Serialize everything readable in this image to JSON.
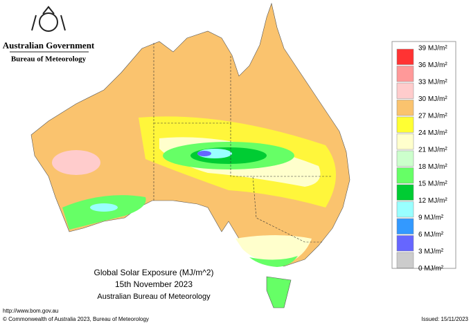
{
  "header": {
    "agency": "Australian Government",
    "bureau": "Bureau of Meteorology"
  },
  "map": {
    "title": "Global Solar Exposure (MJ/m^2)",
    "date": "15th November 2023",
    "source": "Australian Bureau of Meteorology"
  },
  "legend": {
    "labels": [
      {
        "value": 39,
        "label": "39 MJ/m²"
      },
      {
        "value": 36,
        "label": "36 MJ/m²"
      },
      {
        "value": 33,
        "label": "33 MJ/m²"
      },
      {
        "value": 30,
        "label": "30 MJ/m²"
      },
      {
        "value": 27,
        "label": "27 MJ/m²"
      },
      {
        "value": 24,
        "label": "24 MJ/m²"
      },
      {
        "value": 21,
        "label": "21 MJ/m²"
      },
      {
        "value": 18,
        "label": "18 MJ/m²"
      },
      {
        "value": 15,
        "label": "15 MJ/m²"
      },
      {
        "value": 12,
        "label": "12 MJ/m²"
      },
      {
        "value": 9,
        "label": "9 MJ/m²"
      },
      {
        "value": 6,
        "label": "6 MJ/m²"
      },
      {
        "value": 3,
        "label": "3 MJ/m²"
      },
      {
        "value": 0,
        "label": "0 MJ/m²"
      }
    ],
    "colors": [
      "#ff3333",
      "#ff9999",
      "#ffcccc",
      "#fac36e",
      "#ffff33",
      "#ffffcc",
      "#ccffcc",
      "#66ff66",
      "#00cc33",
      "#99ffff",
      "#3399ff",
      "#6666ff",
      "#cccccc"
    ]
  },
  "footer": {
    "url": "http://www.bom.gov.au",
    "copyright": "© Commonwealth of Australia 2023, Bureau of Meteorology",
    "issued": "Issued: 15/11/2023"
  }
}
